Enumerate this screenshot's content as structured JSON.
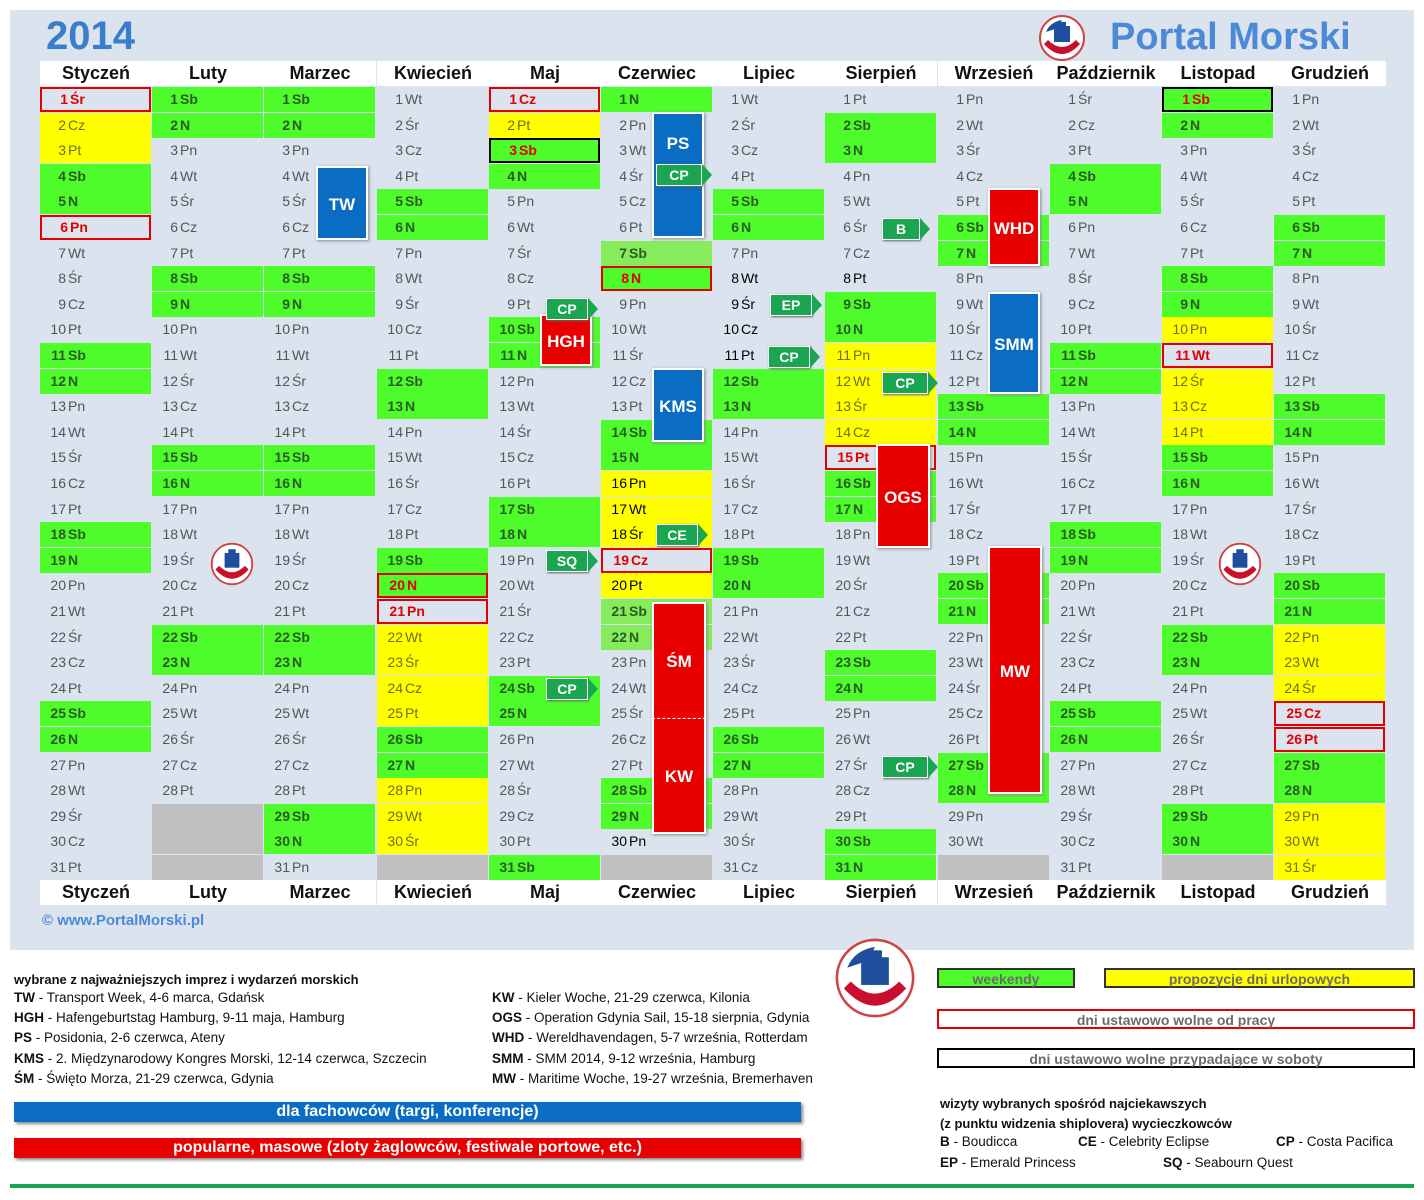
{
  "header": {
    "year": "2014",
    "brand": "Portal Morski"
  },
  "footer": {
    "site": "© www.PortalMorski.pl"
  },
  "months": [
    {
      "name": "Styczeń",
      "start": 2,
      "days": 31
    },
    {
      "name": "Luty",
      "start": 5,
      "days": 28
    },
    {
      "name": "Marzec",
      "start": 5,
      "days": 31
    },
    {
      "name": "Kwiecień",
      "start": 1,
      "days": 30
    },
    {
      "name": "Maj",
      "start": 3,
      "days": 31
    },
    {
      "name": "Czerwiec",
      "start": 6,
      "days": 30
    },
    {
      "name": "Lipiec",
      "start": 1,
      "days": 31
    },
    {
      "name": "Sierpień",
      "start": 4,
      "days": 31
    },
    {
      "name": "Wrzesień",
      "start": 0,
      "days": 30
    },
    {
      "name": "Październik",
      "start": 2,
      "days": 31
    },
    {
      "name": "Listopad",
      "start": 5,
      "days": 30
    },
    {
      "name": "Grudzień",
      "start": 0,
      "days": 31
    }
  ],
  "weekday_abbr": [
    "Pn",
    "Wt",
    "Śr",
    "Cz",
    "Pt",
    "Sb",
    "N"
  ],
  "day_styles": {
    "vacation_days": [
      [
        1,
        2
      ],
      [
        1,
        3
      ],
      [
        4,
        22
      ],
      [
        4,
        23
      ],
      [
        4,
        24
      ],
      [
        4,
        25
      ],
      [
        4,
        28
      ],
      [
        4,
        29
      ],
      [
        4,
        30
      ],
      [
        5,
        2
      ],
      [
        6,
        16
      ],
      [
        6,
        17
      ],
      [
        6,
        18
      ],
      [
        6,
        20
      ],
      [
        8,
        11
      ],
      [
        8,
        12
      ],
      [
        8,
        13
      ],
      [
        8,
        14
      ],
      [
        11,
        10
      ],
      [
        11,
        12
      ],
      [
        11,
        13
      ],
      [
        11,
        14
      ],
      [
        12,
        22
      ],
      [
        12,
        23
      ],
      [
        12,
        24
      ],
      [
        12,
        29
      ],
      [
        12,
        30
      ],
      [
        12,
        31
      ]
    ],
    "holidays_red": [
      [
        1,
        1
      ],
      [
        1,
        6
      ],
      [
        4,
        20
      ],
      [
        4,
        21
      ],
      [
        5,
        1
      ],
      [
        6,
        8
      ],
      [
        6,
        19
      ],
      [
        8,
        15
      ],
      [
        11,
        11
      ],
      [
        12,
        25
      ],
      [
        12,
        26
      ]
    ],
    "holidays_saturday": [
      [
        5,
        3
      ],
      [
        11,
        1
      ]
    ],
    "light_green": [
      [
        6,
        7
      ],
      [
        6,
        21
      ],
      [
        6,
        22
      ]
    ],
    "bold_black": [
      [
        6,
        16
      ],
      [
        6,
        17
      ],
      [
        6,
        18
      ],
      [
        6,
        20
      ],
      [
        6,
        30
      ],
      [
        7,
        8
      ],
      [
        7,
        9
      ],
      [
        7,
        10
      ],
      [
        7,
        11
      ],
      [
        8,
        8
      ]
    ]
  },
  "events": [
    {
      "code": "TW",
      "color": "blue"
    },
    {
      "code": "PS",
      "color": "blue"
    },
    {
      "code": "KMS",
      "color": "blue"
    },
    {
      "code": "SMM",
      "color": "blue"
    },
    {
      "code": "HGH",
      "color": "red"
    },
    {
      "code": "WHD",
      "color": "red"
    },
    {
      "code": "OGS",
      "color": "red"
    },
    {
      "code": "ŚM",
      "color": "red"
    },
    {
      "code": "KW",
      "color": "red"
    },
    {
      "code": "MW",
      "color": "red"
    }
  ],
  "ship_tags": [
    "CP",
    "CP",
    "CE",
    "SQ",
    "CP",
    "EP",
    "CP",
    "B",
    "CP",
    "CP"
  ],
  "legend": {
    "title": "wybrane z najważniejszych imprez i wydarzeń morskich",
    "col1": [
      {
        "code": "TW",
        "text": " - Transport Week, 4-6 marca, Gdańsk"
      },
      {
        "code": "HGH",
        "text": " - Hafengeburtstag Hamburg, 9-11 maja, Hamburg"
      },
      {
        "code": "PS",
        "text": " - Posidonia, 2-6 czerwca, Ateny"
      },
      {
        "code": "KMS",
        "text": " - 2. Międzynarodowy Kongres Morski, 12-14 czerwca, Szczecin"
      },
      {
        "code": "ŚM",
        "text": " - Święto Morza, 21-29 czerwca, Gdynia"
      }
    ],
    "col2": [
      {
        "code": "KW",
        "text": " - Kieler Woche, 21-29 czerwca, Kilonia"
      },
      {
        "code": "OGS",
        "text": " - Operation Gdynia Sail, 15-18 sierpnia, Gdynia"
      },
      {
        "code": "WHD",
        "text": " - Wereldhavendagen, 5-7 września, Rotterdam"
      },
      {
        "code": "SMM",
        "text": " - SMM 2014, 9-12 września, Hamburg"
      },
      {
        "code": "MW",
        "text": " - Maritime Woche, 19-27 września, Bremerhaven"
      }
    ],
    "bar_blue": "dla fachowców (targi, konferencje)",
    "bar_red": "popularne, masowe (zloty żaglowców, festiwale portowe, etc.)",
    "key_weekends": "weekendy",
    "key_vacation": "propozycje dni urlopowych",
    "key_holidays": "dni ustawowo wolne od pracy",
    "key_saturday": "dni ustawowo wolne przypadające w soboty",
    "cruise_title1": "wizyty wybranych spośród najciekawszych",
    "cruise_title2": "(z punktu widzenia shiplovera) wycieczkowców",
    "ships": [
      {
        "code": "B",
        "name": " - Boudicca"
      },
      {
        "code": "CE",
        "name": " - Celebrity Eclipse"
      },
      {
        "code": "CP",
        "name": " - Costa Pacifica"
      },
      {
        "code": "EP",
        "name": " - Emerald Princess"
      },
      {
        "code": "SQ",
        "name": " - Seabourn Quest"
      }
    ]
  },
  "colors": {
    "weekend": "#4efc2c",
    "vacation": "#ffff00",
    "holiday": "#e40000",
    "blue_event": "#0a6cc2",
    "red_event": "#e80000",
    "ship_tag": "#1aa650",
    "brand": "#4a8ad6"
  }
}
